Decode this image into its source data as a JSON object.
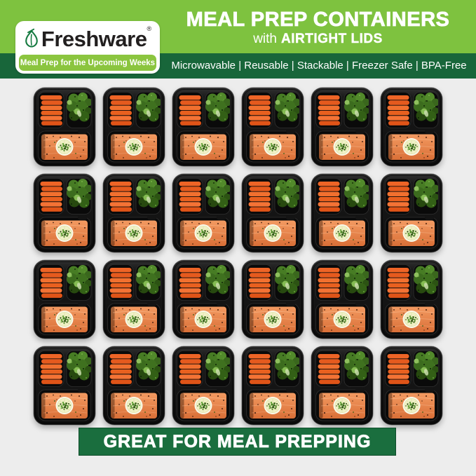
{
  "brand": {
    "name": "Freshware",
    "registered_mark": "®",
    "tagline": "Meal Prep for the Upcoming Weeks"
  },
  "header": {
    "title": "MEAL PREP CONTAINERS",
    "subtitle_prefix": "with",
    "subtitle_emphasis": "AIRTIGHT LIDS",
    "features": "Microwavable | Reusable | Stackable | Freezer Safe | BPA-Free"
  },
  "banner": {
    "text": "GREAT FOR MEAL PREPPING"
  },
  "grid": {
    "rows": 4,
    "cols": 6,
    "item_description": "black 3-compartment meal prep container with baby carrots, broccoli and salmon topped with a lemon slice and herbs"
  },
  "colors": {
    "brand_green": "#7ec23f",
    "ribbon_green": "#8bc53f",
    "dark_green": "#18663a",
    "banner_green": "#1a6e3e",
    "body_bg": "#ededed",
    "tray_black": "#141414",
    "carrot_orange": "#ee6426",
    "broccoli_green": "#3c6c1e",
    "salmon_orange": "#e88449",
    "lemon_cream": "#f0f1c6",
    "logo_text": "#221f1f"
  }
}
